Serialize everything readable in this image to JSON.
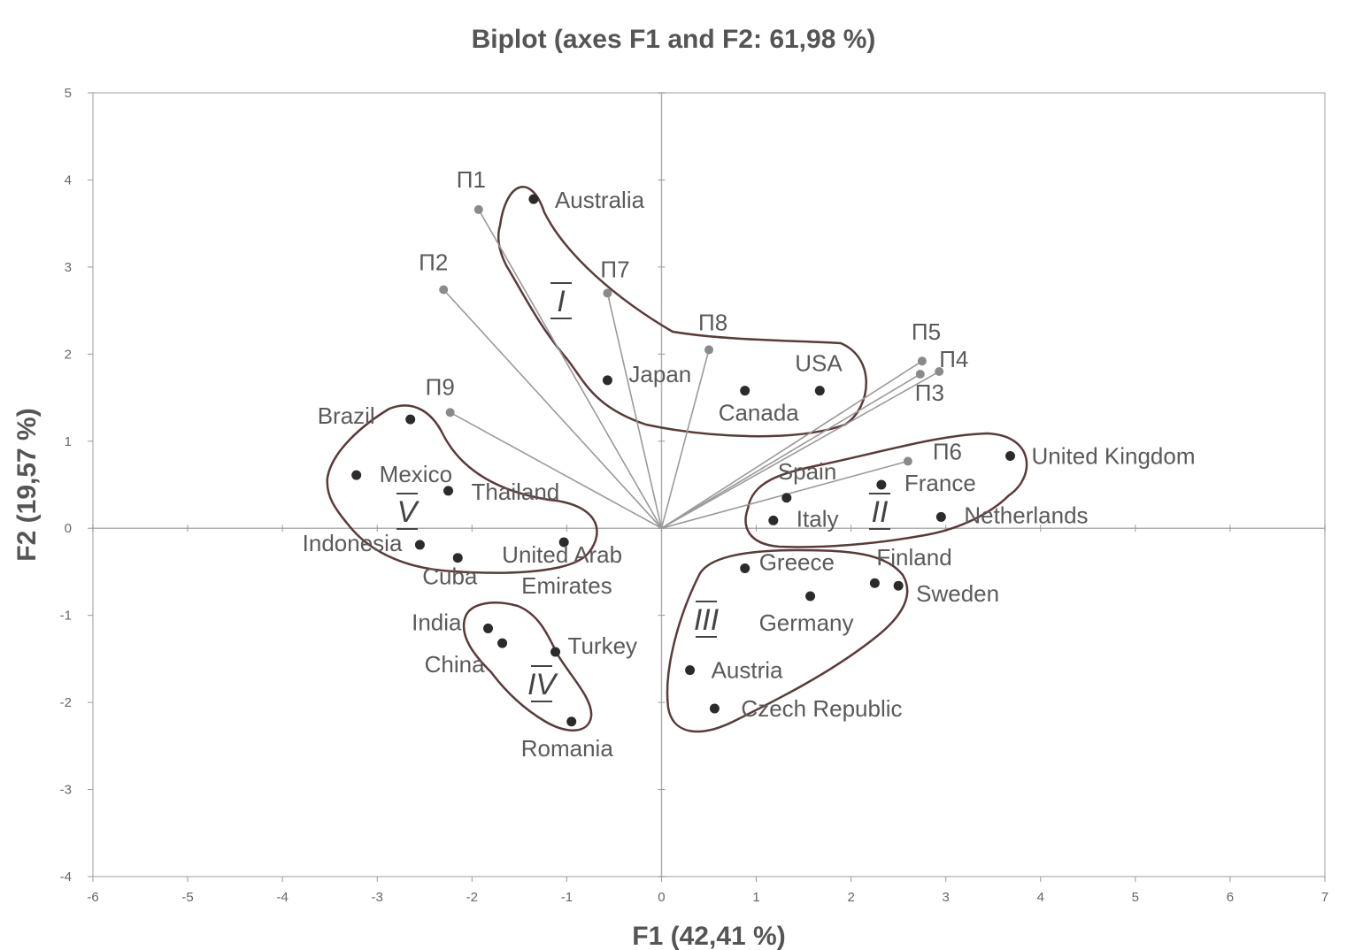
{
  "chart_data": {
    "type": "scatter",
    "title": "Biplot (axes F1 and F2: 61,98 %)",
    "xlabel": "F1 (42,41 %)",
    "ylabel": "F2 (19,57 %)",
    "xlim": [
      -6,
      7
    ],
    "ylim": [
      -4,
      5
    ],
    "x_ticks": [
      "-6",
      "-5",
      "-4",
      "-3",
      "-2",
      "-1",
      "0",
      "1",
      "2",
      "3",
      "4",
      "5",
      "6",
      "7"
    ],
    "y_ticks": [
      "5",
      "4",
      "3",
      "2",
      "1",
      "0",
      "-1",
      "-2",
      "-3",
      "-4"
    ],
    "grid": false,
    "colors": {
      "observation": "#2b2b2b",
      "variable": "#8a8a8a",
      "vector": "#9a9a9a",
      "cluster_outline": "#5a3a3a"
    },
    "observations": [
      {
        "name": "Australia",
        "x": -1.35,
        "y": 3.78
      },
      {
        "name": "Japan",
        "x": -0.57,
        "y": 1.7
      },
      {
        "name": "Canada",
        "x": 0.88,
        "y": 1.58
      },
      {
        "name": "USA",
        "x": 1.67,
        "y": 1.58
      },
      {
        "name": "Brazil",
        "x": -2.65,
        "y": 1.25
      },
      {
        "name": "Mexico",
        "x": -3.22,
        "y": 0.61
      },
      {
        "name": "Thailand",
        "x": -2.25,
        "y": 0.43
      },
      {
        "name": "Indonesia",
        "x": -2.55,
        "y": -0.19
      },
      {
        "name": "Cuba",
        "x": -2.15,
        "y": -0.34
      },
      {
        "name": "United Arab Emirates",
        "x": -1.03,
        "y": -0.16
      },
      {
        "name": "India",
        "x": -1.83,
        "y": -1.15
      },
      {
        "name": "China",
        "x": -1.68,
        "y": -1.32
      },
      {
        "name": "Turkey",
        "x": -1.12,
        "y": -1.42
      },
      {
        "name": "Romania",
        "x": -0.95,
        "y": -2.22
      },
      {
        "name": "United Kingdom",
        "x": 3.68,
        "y": 0.83
      },
      {
        "name": "France",
        "x": 2.32,
        "y": 0.5
      },
      {
        "name": "Spain",
        "x": 1.32,
        "y": 0.35
      },
      {
        "name": "Italy",
        "x": 1.18,
        "y": 0.09
      },
      {
        "name": "Netherlands",
        "x": 2.95,
        "y": 0.13
      },
      {
        "name": "Greece",
        "x": 0.88,
        "y": -0.46
      },
      {
        "name": "Finland",
        "x": 2.25,
        "y": -0.63
      },
      {
        "name": "Sweden",
        "x": 2.5,
        "y": -0.66
      },
      {
        "name": "Germany",
        "x": 1.57,
        "y": -0.78
      },
      {
        "name": "Austria",
        "x": 0.3,
        "y": -1.63
      },
      {
        "name": "Czech Republic",
        "x": 0.56,
        "y": -2.07
      }
    ],
    "variables": [
      {
        "name": "П1",
        "x": -1.93,
        "y": 3.66
      },
      {
        "name": "П2",
        "x": -2.3,
        "y": 2.74
      },
      {
        "name": "П7",
        "x": -0.57,
        "y": 2.7
      },
      {
        "name": "П8",
        "x": 0.5,
        "y": 2.05
      },
      {
        "name": "П9",
        "x": -2.23,
        "y": 1.33
      },
      {
        "name": "П5",
        "x": 2.75,
        "y": 1.92
      },
      {
        "name": "П4",
        "x": 2.93,
        "y": 1.8
      },
      {
        "name": "П3",
        "x": 2.73,
        "y": 1.77
      },
      {
        "name": "П6",
        "x": 2.6,
        "y": 0.77
      }
    ],
    "clusters": [
      {
        "name": "I"
      },
      {
        "name": "II"
      },
      {
        "name": "III"
      },
      {
        "name": "IV"
      },
      {
        "name": "V"
      }
    ]
  }
}
